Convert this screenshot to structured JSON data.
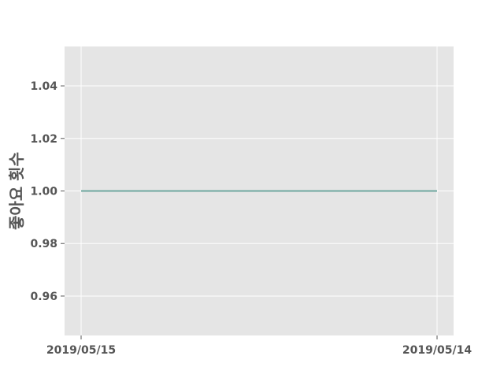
{
  "chart_data": {
    "type": "line",
    "title": "",
    "xlabel": "",
    "ylabel": "좋아요 횟수",
    "categories": [
      "2019/05/15",
      "2019/05/14"
    ],
    "series": [
      {
        "values": [
          1.0,
          1.0
        ]
      }
    ],
    "ylim": [
      0.945,
      1.055
    ],
    "yticks": [
      "0.96",
      "0.98",
      "1.00",
      "1.02",
      "1.04"
    ],
    "ytick_values": [
      0.96,
      0.98,
      1.0,
      1.02,
      1.04
    ],
    "grid": true,
    "colors": {
      "plot_background": "#e5e5e5",
      "grid": "#ffffff",
      "line": "#6fa8a0",
      "text": "#555555"
    }
  }
}
